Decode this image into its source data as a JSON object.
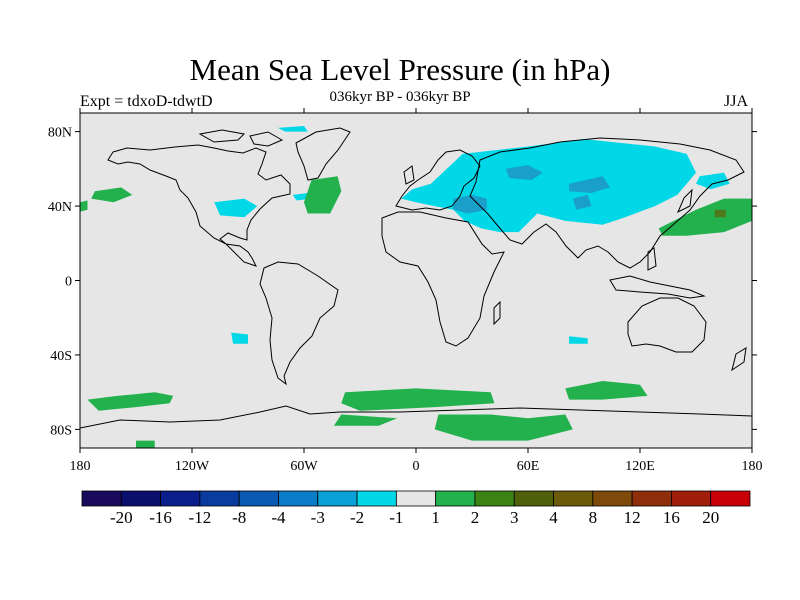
{
  "title": "Mean Sea Level Pressure (in hPa)",
  "subtitle": "036kyr BP - 036kyr BP",
  "experiment_label": "Expt = tdxoD-tdwtD",
  "season_label": "JJA",
  "map": {
    "projection": "cylindrical equidistant",
    "lon_range": [
      -180,
      180
    ],
    "lat_range": [
      -90,
      90
    ],
    "ocean_color": "#e6e6e6",
    "coast_color": "#000000",
    "lat_ticks": [
      {
        "value": 80,
        "label": "80N"
      },
      {
        "value": 40,
        "label": "40N"
      },
      {
        "value": 0,
        "label": "0"
      },
      {
        "value": -40,
        "label": "40S"
      },
      {
        "value": -80,
        "label": "80S"
      }
    ],
    "lon_ticks": [
      {
        "value": -180,
        "label": "180"
      },
      {
        "value": -120,
        "label": "120W"
      },
      {
        "value": -60,
        "label": "60W"
      },
      {
        "value": 0,
        "label": "0"
      },
      {
        "value": 60,
        "label": "60E"
      },
      {
        "value": 120,
        "label": "120E"
      },
      {
        "value": 180,
        "label": "180"
      }
    ],
    "anomaly_regions": [
      {
        "name": "eurasia-negative-main",
        "color": "#00d8e8",
        "points": [
          [
            8,
            52
          ],
          [
            25,
            68
          ],
          [
            60,
            72
          ],
          [
            90,
            76
          ],
          [
            128,
            72
          ],
          [
            145,
            68
          ],
          [
            150,
            58
          ],
          [
            140,
            46
          ],
          [
            128,
            40
          ],
          [
            112,
            34
          ],
          [
            100,
            30
          ],
          [
            80,
            32
          ],
          [
            65,
            36
          ],
          [
            55,
            26
          ],
          [
            45,
            26
          ],
          [
            35,
            28
          ],
          [
            26,
            32
          ],
          [
            20,
            38
          ],
          [
            10,
            40
          ],
          [
            0,
            42
          ],
          [
            -8,
            44
          ],
          [
            -2,
            49
          ]
        ]
      },
      {
        "name": "mediterranean-core",
        "color": "#1aa0c8",
        "points": [
          [
            20,
            44
          ],
          [
            30,
            46
          ],
          [
            38,
            44
          ],
          [
            38,
            38
          ],
          [
            28,
            36
          ],
          [
            20,
            38
          ]
        ]
      },
      {
        "name": "central-asia-core",
        "color": "#1aa0c8",
        "points": [
          [
            48,
            60
          ],
          [
            60,
            62
          ],
          [
            68,
            58
          ],
          [
            62,
            54
          ],
          [
            50,
            55
          ]
        ]
      },
      {
        "name": "mongolia-core",
        "color": "#1aa0c8",
        "points": [
          [
            82,
            52
          ],
          [
            100,
            56
          ],
          [
            104,
            50
          ],
          [
            94,
            47
          ],
          [
            82,
            48
          ]
        ]
      },
      {
        "name": "tibet-core",
        "color": "#1aa0c8",
        "points": [
          [
            84,
            44
          ],
          [
            92,
            46
          ],
          [
            94,
            40
          ],
          [
            86,
            38
          ]
        ]
      },
      {
        "name": "arctic-positive-tiny",
        "color": "#00d8e8",
        "points": [
          [
            -74,
            82
          ],
          [
            -60,
            83
          ],
          [
            -58,
            80
          ],
          [
            -70,
            80
          ]
        ]
      },
      {
        "name": "north-pacific-negative",
        "color": "#00d8e8",
        "points": [
          [
            -108,
            42
          ],
          [
            -92,
            44
          ],
          [
            -85,
            40
          ],
          [
            -92,
            34
          ],
          [
            -105,
            35
          ]
        ]
      },
      {
        "name": "north-atlantic-small",
        "color": "#00d8e8",
        "points": [
          [
            -66,
            46
          ],
          [
            -58,
            47
          ],
          [
            -56,
            44
          ],
          [
            -64,
            43
          ]
        ]
      },
      {
        "name": "east-siberia-neg",
        "color": "#00d8e8",
        "points": [
          [
            152,
            56
          ],
          [
            165,
            58
          ],
          [
            168,
            52
          ],
          [
            158,
            49
          ],
          [
            150,
            52
          ]
        ]
      },
      {
        "name": "south-pacific-negative",
        "color": "#00d8e8",
        "points": [
          [
            -99,
            -28
          ],
          [
            -90,
            -29
          ],
          [
            -90,
            -34
          ],
          0,
          [
            -98,
            -34
          ]
        ]
      },
      {
        "name": "south-atlantic-negative",
        "color": "#00d8e8",
        "points": [
          [
            82,
            -30
          ],
          [
            92,
            -31
          ],
          [
            92,
            -34
          ],
          [
            82,
            -34
          ]
        ]
      },
      {
        "name": "north-pacific-positive",
        "color": "#22b14c",
        "points": [
          [
            -172,
            48
          ],
          [
            -158,
            50
          ],
          [
            -152,
            46
          ],
          [
            -162,
            42
          ],
          [
            -174,
            44
          ]
        ]
      },
      {
        "name": "atlantic-positive",
        "color": "#22b14c",
        "points": [
          [
            -56,
            54
          ],
          [
            -42,
            56
          ],
          [
            -40,
            48
          ],
          [
            -46,
            36
          ],
          [
            -58,
            36
          ],
          [
            -60,
            42
          ]
        ]
      },
      {
        "name": "west-edge-positive",
        "color": "#22b14c",
        "points": [
          [
            -180,
            42
          ],
          [
            -176,
            43
          ],
          [
            -176,
            38
          ],
          [
            -180,
            37
          ]
        ]
      },
      {
        "name": "north-pacific-east-positive",
        "color": "#22b14c",
        "points": [
          [
            130,
            28
          ],
          [
            150,
            38
          ],
          [
            165,
            44
          ],
          [
            180,
            44
          ],
          [
            180,
            32
          ],
          [
            165,
            26
          ],
          [
            145,
            24
          ],
          [
            132,
            24
          ]
        ]
      },
      {
        "name": "north-pacific-core",
        "color": "#4e7a1c",
        "points": [
          [
            160,
            38
          ],
          [
            166,
            38
          ],
          [
            166,
            34
          ],
          [
            160,
            34
          ]
        ]
      },
      {
        "name": "south-pacific-positive",
        "color": "#22b14c",
        "points": [
          [
            -176,
            -64
          ],
          [
            -160,
            -62
          ],
          [
            -140,
            -60
          ],
          [
            -130,
            -62
          ],
          [
            -132,
            -66
          ],
          [
            -150,
            -68
          ],
          [
            -170,
            -70
          ]
        ]
      },
      {
        "name": "southern-ocean-positive-a",
        "color": "#22b14c",
        "points": [
          [
            -38,
            -60
          ],
          [
            0,
            -58
          ],
          [
            40,
            -60
          ],
          [
            42,
            -66
          ],
          [
            10,
            -68
          ],
          [
            -30,
            -70
          ],
          [
            -40,
            -66
          ]
        ]
      },
      {
        "name": "southern-ocean-positive-b",
        "color": "#22b14c",
        "points": [
          [
            80,
            -58
          ],
          [
            100,
            -54
          ],
          [
            120,
            -56
          ],
          [
            124,
            -62
          ],
          [
            100,
            -64
          ],
          [
            82,
            -64
          ]
        ]
      },
      {
        "name": "antarctic-coast-positive",
        "color": "#22b14c",
        "points": [
          [
            -40,
            -72
          ],
          [
            -10,
            -74
          ],
          [
            -20,
            -78
          ],
          [
            -44,
            -78
          ]
        ]
      },
      {
        "name": "antarctic-positive-east",
        "color": "#22b14c",
        "points": [
          [
            12,
            -72
          ],
          [
            40,
            -72
          ],
          [
            60,
            -74
          ],
          [
            80,
            -72
          ],
          [
            84,
            -80
          ],
          [
            60,
            -86
          ],
          [
            30,
            -86
          ],
          [
            10,
            -80
          ]
        ]
      },
      {
        "name": "antarctic-positive-small",
        "color": "#22b14c",
        "points": [
          [
            -150,
            -86
          ],
          [
            -140,
            -86
          ],
          [
            -140,
            -90
          ],
          [
            -150,
            -90
          ]
        ]
      }
    ]
  },
  "colorbar": {
    "colors": [
      "#1a0a5c",
      "#0a0f6e",
      "#0a1e8c",
      "#0a3ca0",
      "#0a5ab4",
      "#0a7cc8",
      "#0aa0d8",
      "#00d8e8",
      "#e6e6e6",
      "#22b14c",
      "#3c8214",
      "#50600a",
      "#6a5a0a",
      "#7e4a0a",
      "#8e2e0a",
      "#a01e0a",
      "#c8000a"
    ],
    "labels": [
      "-20",
      "-16",
      "-12",
      "-8",
      "-4",
      "-3",
      "-2",
      "-1",
      "1",
      "2",
      "3",
      "4",
      "8",
      "12",
      "16",
      "20"
    ]
  }
}
